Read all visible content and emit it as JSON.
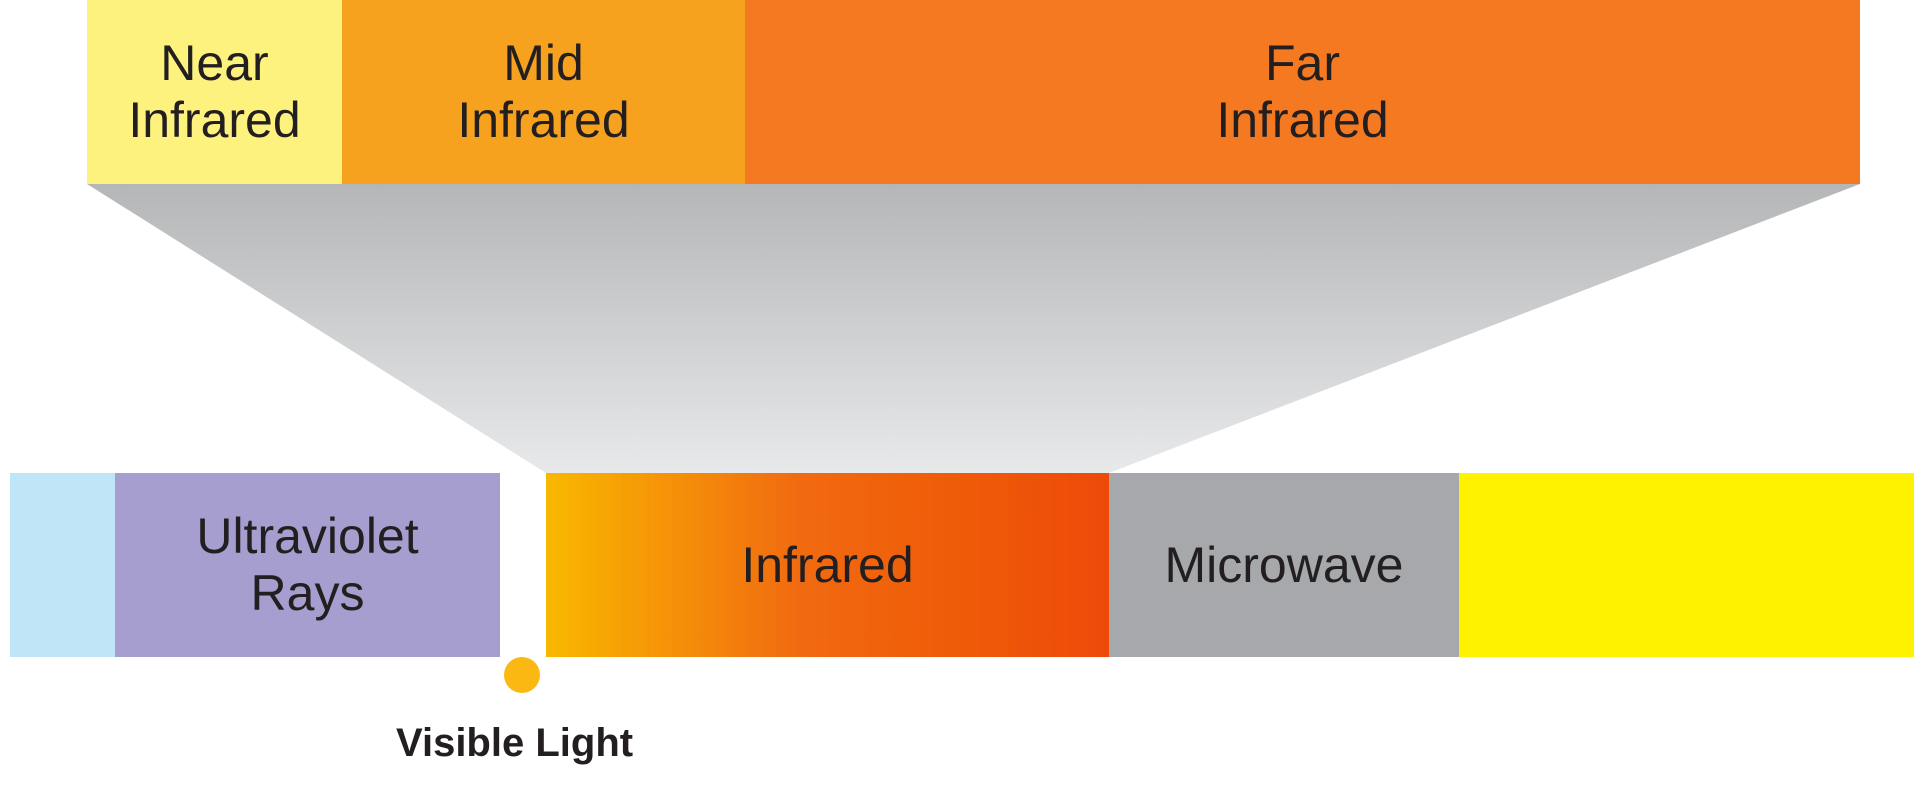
{
  "expanded_bands": [
    {
      "label": "Near\nInfrared",
      "color": "#fdf27d"
    },
    {
      "label": "Mid\nInfrared",
      "color": "#f7a21e"
    },
    {
      "label": "Far\nInfrared",
      "color": "#f47920"
    }
  ],
  "spectrum_bands": [
    {
      "label": "",
      "color": "#bfe5f7"
    },
    {
      "label": "Ultraviolet\nRays",
      "color": "#a59ecf"
    },
    {
      "label": "",
      "color": "#ffffff"
    },
    {
      "label": "Infrared",
      "gradient": [
        "#f9b800",
        "#f16a10",
        "#ef5a08",
        "#ed4a0a"
      ]
    },
    {
      "label": "Microwave",
      "color": "#a7a8ab"
    },
    {
      "label": "",
      "color": "#fff200"
    }
  ],
  "visible_light": {
    "label": "Visible Light",
    "marker_color": "#fbb813"
  },
  "funnel_colors": [
    "#b5b6b7",
    "#e8e9ea"
  ]
}
